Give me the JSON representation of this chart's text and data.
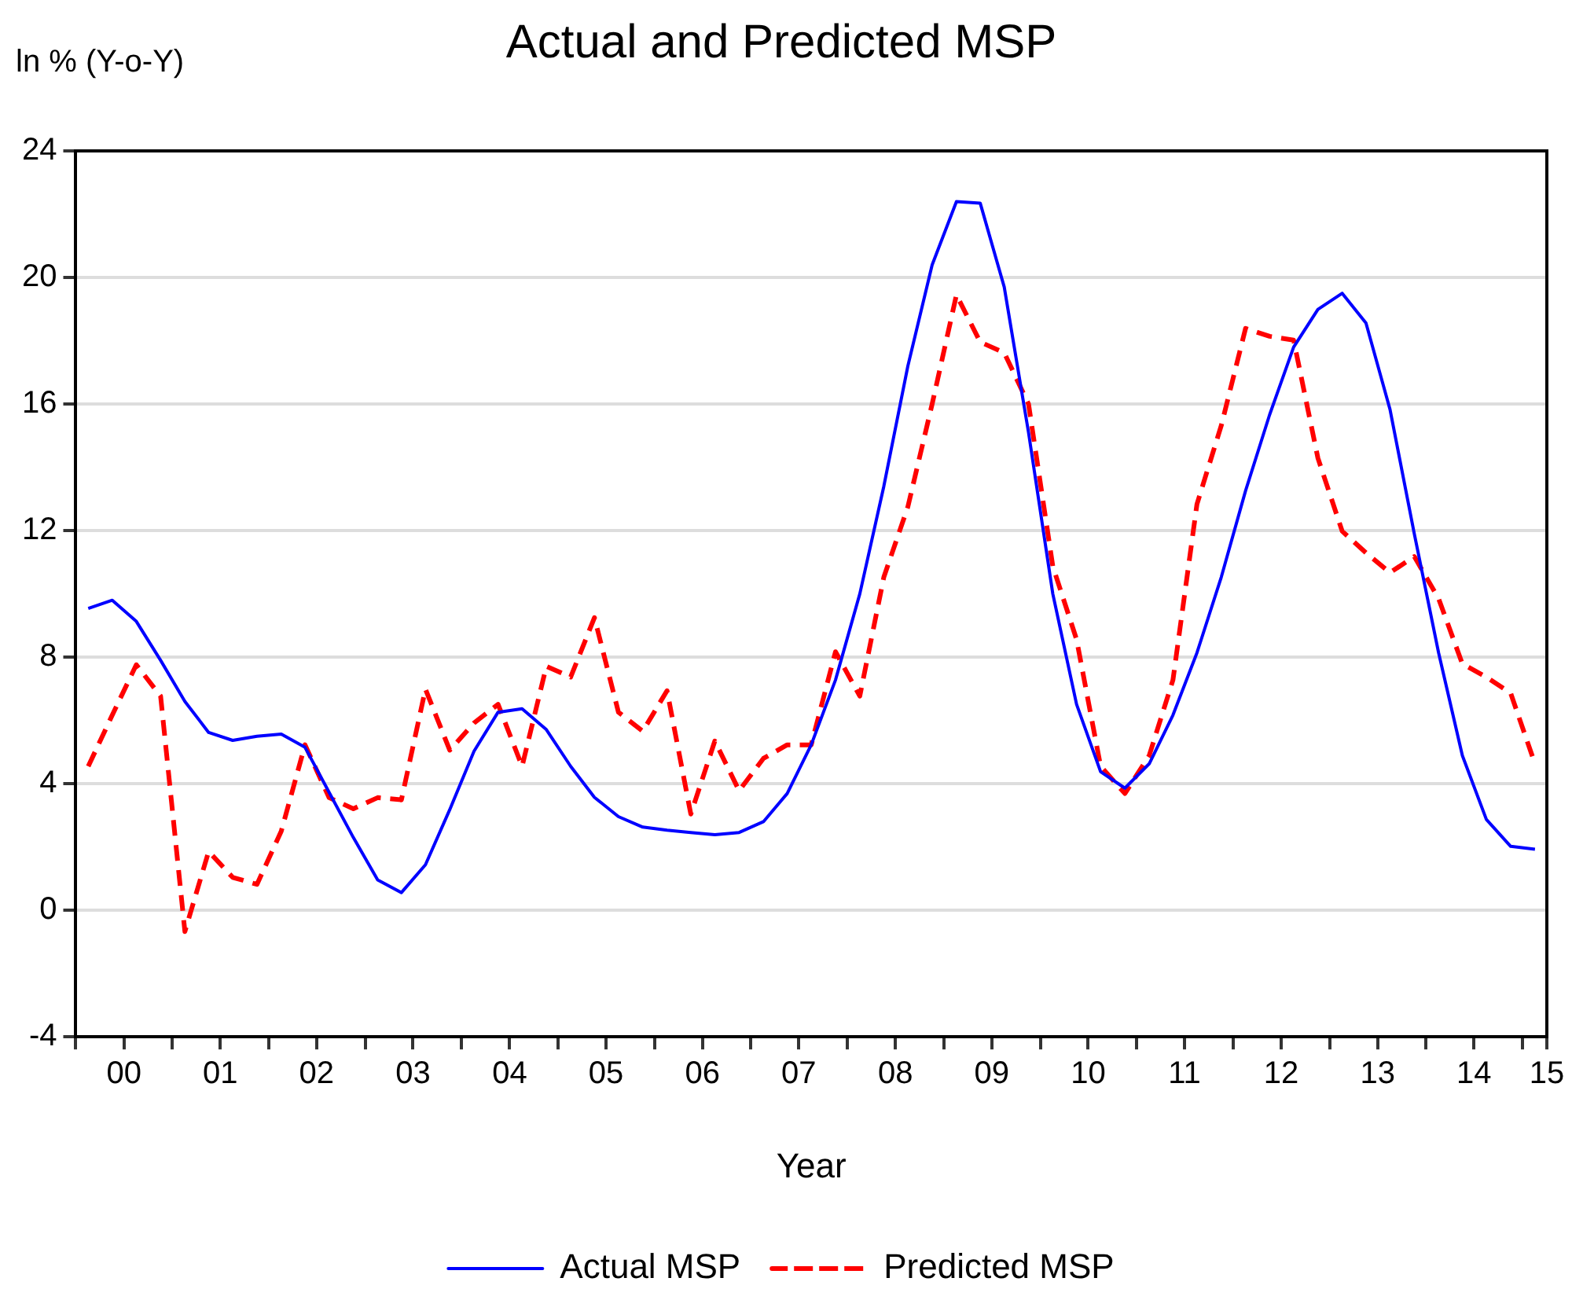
{
  "chart_data": {
    "type": "line",
    "title": "Actual and Predicted MSP",
    "xlabel": "Year",
    "ylabel": "ln % (Y-o-Y)",
    "x": [
      "2000-01",
      "2000-04",
      "2000-07",
      "2000-10",
      "2001-01",
      "2001-04",
      "2001-07",
      "2001-10",
      "2002-01",
      "2002-04",
      "2002-07",
      "2002-10",
      "2003-01",
      "2003-04",
      "2003-07",
      "2003-10",
      "2004-01",
      "2004-04",
      "2004-07",
      "2004-10",
      "2005-01",
      "2005-04",
      "2005-07",
      "2005-10",
      "2006-01",
      "2006-04",
      "2006-07",
      "2006-10",
      "2007-01",
      "2007-04",
      "2007-07",
      "2007-10",
      "2008-01",
      "2008-04",
      "2008-07",
      "2008-10",
      "2009-01",
      "2009-04",
      "2009-07",
      "2009-10",
      "2010-01",
      "2010-04",
      "2010-07",
      "2010-10",
      "2011-01",
      "2011-04",
      "2011-07",
      "2011-10",
      "2012-01",
      "2012-04",
      "2012-07",
      "2012-10",
      "2013-01",
      "2013-04",
      "2013-07",
      "2013-10",
      "2014-01",
      "2014-04",
      "2014-07",
      "2014-10",
      "2015-01"
    ],
    "series": [
      {
        "name": "Actual MSP",
        "color": "#0000ff",
        "line_style": "solid",
        "values": [
          9.54,
          9.8,
          9.13,
          7.9,
          6.6,
          5.62,
          5.37,
          5.5,
          5.57,
          5.15,
          3.73,
          2.3,
          0.96,
          0.56,
          1.44,
          3.18,
          5.03,
          6.26,
          6.37,
          5.71,
          4.55,
          3.57,
          2.96,
          2.63,
          2.53,
          2.46,
          2.39,
          2.46,
          2.8,
          3.69,
          5.23,
          7.28,
          10.0,
          13.4,
          17.2,
          20.4,
          22.4,
          22.35,
          19.7,
          15.1,
          10.0,
          6.51,
          4.38,
          3.86,
          4.63,
          6.17,
          8.14,
          10.53,
          13.26,
          15.66,
          17.8,
          18.99,
          19.5,
          18.56,
          15.83,
          11.9,
          8.14,
          4.89,
          2.87,
          2.02,
          1.93
        ]
      },
      {
        "name": "Predicted MSP",
        "color": "#ff0000",
        "line_style": "dashed",
        "values": [
          4.55,
          6.17,
          7.76,
          6.77,
          -0.67,
          1.86,
          1.04,
          0.82,
          2.5,
          5.23,
          3.56,
          3.21,
          3.56,
          3.49,
          6.99,
          5.06,
          5.92,
          6.51,
          4.55,
          7.71,
          7.37,
          9.25,
          6.26,
          5.66,
          6.94,
          3.04,
          5.35,
          3.78,
          4.8,
          5.23,
          5.23,
          8.17,
          6.77,
          10.53,
          12.75,
          16.0,
          19.45,
          17.96,
          17.62,
          16.0,
          10.87,
          8.56,
          4.55,
          3.69,
          4.89,
          7.28,
          12.84,
          15.32,
          18.39,
          18.14,
          18.02,
          14.29,
          11.98,
          11.3,
          10.67,
          11.18,
          9.85,
          7.79,
          7.37,
          6.86,
          4.63
        ]
      }
    ],
    "xlim": [
      "1999-11-15",
      "2015-02-15"
    ],
    "xticks": [
      {
        "value": "1999-11-15",
        "label": null
      },
      {
        "value": "2000-05-15",
        "label": "00"
      },
      {
        "value": "2000-11-15",
        "label": null
      },
      {
        "value": "2001-05-15",
        "label": "01"
      },
      {
        "value": "2001-11-15",
        "label": null
      },
      {
        "value": "2002-05-15",
        "label": "02"
      },
      {
        "value": "2002-11-15",
        "label": null
      },
      {
        "value": "2003-05-15",
        "label": "03"
      },
      {
        "value": "2003-11-15",
        "label": null
      },
      {
        "value": "2004-05-15",
        "label": "04"
      },
      {
        "value": "2004-11-15",
        "label": null
      },
      {
        "value": "2005-05-15",
        "label": "05"
      },
      {
        "value": "2005-11-15",
        "label": null
      },
      {
        "value": "2006-05-15",
        "label": "06"
      },
      {
        "value": "2006-11-15",
        "label": null
      },
      {
        "value": "2007-05-15",
        "label": "07"
      },
      {
        "value": "2007-11-15",
        "label": null
      },
      {
        "value": "2008-05-15",
        "label": "08"
      },
      {
        "value": "2008-11-15",
        "label": null
      },
      {
        "value": "2009-05-15",
        "label": "09"
      },
      {
        "value": "2009-11-15",
        "label": null
      },
      {
        "value": "2010-05-15",
        "label": "10"
      },
      {
        "value": "2010-11-15",
        "label": null
      },
      {
        "value": "2011-05-15",
        "label": "11"
      },
      {
        "value": "2011-11-15",
        "label": null
      },
      {
        "value": "2012-05-15",
        "label": "12"
      },
      {
        "value": "2012-11-15",
        "label": null
      },
      {
        "value": "2013-05-15",
        "label": "13"
      },
      {
        "value": "2013-11-15",
        "label": null
      },
      {
        "value": "2014-05-15",
        "label": "14"
      },
      {
        "value": "2014-11-15",
        "label": null
      },
      {
        "value": "2015-02-15",
        "label": "15"
      }
    ],
    "ylim": [
      -4,
      24
    ],
    "yticks": [
      -4,
      0,
      4,
      8,
      12,
      16,
      20,
      24
    ],
    "grid": "y",
    "legend": "bottom",
    "marker": "none"
  }
}
